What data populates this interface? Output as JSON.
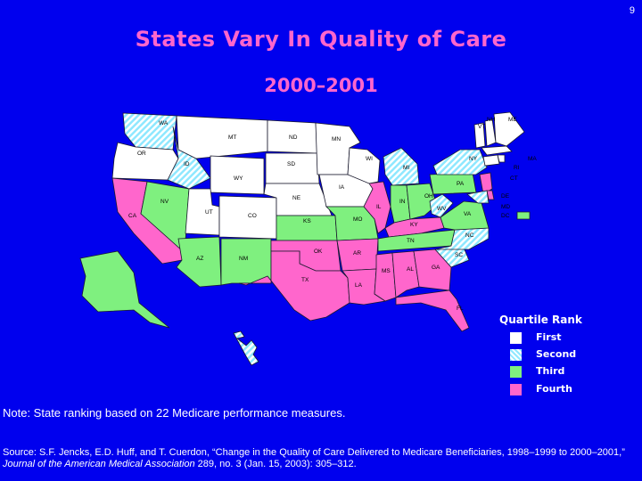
{
  "page_number": "9",
  "title": "States Vary In Quality of Care",
  "subtitle": "2000–2001",
  "colors": {
    "background": "#0000ee",
    "title": "#ff66cc",
    "first": "#ffffff",
    "second": "#8fe8ff",
    "third": "#7ff07f",
    "fourth": "#ff66cc",
    "border": "#1a1a2e"
  },
  "legend": {
    "title": "Quartile Rank",
    "items": [
      {
        "label": "First",
        "rank": "first"
      },
      {
        "label": "Second",
        "rank": "second"
      },
      {
        "label": "Third",
        "rank": "third"
      },
      {
        "label": "Fourth",
        "rank": "fourth"
      }
    ]
  },
  "states": [
    {
      "abbr": "WA",
      "label": "WA",
      "rank": "second"
    },
    {
      "abbr": "OR",
      "label": "OR",
      "rank": "first"
    },
    {
      "abbr": "CA",
      "label": "CA",
      "rank": "fourth"
    },
    {
      "abbr": "NV",
      "label": "NV",
      "rank": "third"
    },
    {
      "abbr": "ID",
      "label": "ID",
      "rank": "second"
    },
    {
      "abbr": "MT",
      "label": "MT",
      "rank": "first"
    },
    {
      "abbr": "WY",
      "label": "WY",
      "rank": "first"
    },
    {
      "abbr": "UT",
      "label": "UT",
      "rank": "first"
    },
    {
      "abbr": "AZ",
      "label": "AZ",
      "rank": "third"
    },
    {
      "abbr": "CO",
      "label": "CO",
      "rank": "first"
    },
    {
      "abbr": "NM",
      "label": "NM",
      "rank": "third"
    },
    {
      "abbr": "ND",
      "label": "ND",
      "rank": "first"
    },
    {
      "abbr": "SD",
      "label": "SD",
      "rank": "first"
    },
    {
      "abbr": "NE",
      "label": "NE",
      "rank": "first"
    },
    {
      "abbr": "KS",
      "label": "KS",
      "rank": "third"
    },
    {
      "abbr": "OK",
      "label": "OK",
      "rank": "fourth"
    },
    {
      "abbr": "TX",
      "label": "TX",
      "rank": "fourth"
    },
    {
      "abbr": "MN",
      "label": "MN",
      "rank": "first"
    },
    {
      "abbr": "IA",
      "label": "IA",
      "rank": "first"
    },
    {
      "abbr": "MO",
      "label": "MO",
      "rank": "third"
    },
    {
      "abbr": "AR",
      "label": "AR",
      "rank": "fourth"
    },
    {
      "abbr": "LA",
      "label": "LA",
      "rank": "fourth"
    },
    {
      "abbr": "WI",
      "label": "WI",
      "rank": "first"
    },
    {
      "abbr": "IL",
      "label": "IL",
      "rank": "fourth"
    },
    {
      "abbr": "MS",
      "label": "MS",
      "rank": "fourth"
    },
    {
      "abbr": "MI",
      "label": "MI",
      "rank": "second"
    },
    {
      "abbr": "IN",
      "label": "IN",
      "rank": "third"
    },
    {
      "abbr": "KY",
      "label": "KY",
      "rank": "fourth"
    },
    {
      "abbr": "TN",
      "label": "TN",
      "rank": "third"
    },
    {
      "abbr": "AL",
      "label": "AL",
      "rank": "fourth"
    },
    {
      "abbr": "OH",
      "label": "OH",
      "rank": "third"
    },
    {
      "abbr": "GA",
      "label": "GA",
      "rank": "fourth"
    },
    {
      "abbr": "FL",
      "label": "FL",
      "rank": "fourth"
    },
    {
      "abbr": "SC",
      "label": "SC",
      "rank": "second"
    },
    {
      "abbr": "NC",
      "label": "NC",
      "rank": "second"
    },
    {
      "abbr": "VA",
      "label": "VA",
      "rank": "third"
    },
    {
      "abbr": "WV",
      "label": "WV",
      "rank": "second"
    },
    {
      "abbr": "PA",
      "label": "PA",
      "rank": "third"
    },
    {
      "abbr": "NY",
      "label": "NY",
      "rank": "second"
    },
    {
      "abbr": "VT",
      "label": "VT",
      "rank": "first"
    },
    {
      "abbr": "NH",
      "label": "NH",
      "rank": "first"
    },
    {
      "abbr": "ME",
      "label": "ME",
      "rank": "first"
    },
    {
      "abbr": "MA",
      "label": "MA",
      "rank": "first"
    },
    {
      "abbr": "RI",
      "label": "RI",
      "rank": "first"
    },
    {
      "abbr": "CT",
      "label": "CT",
      "rank": "first"
    },
    {
      "abbr": "NJ",
      "label": "",
      "rank": "fourth"
    },
    {
      "abbr": "DE",
      "label": "DE",
      "rank": "fourth"
    },
    {
      "abbr": "MD",
      "label": "MD",
      "rank": "second"
    },
    {
      "abbr": "DC",
      "label": "DC",
      "rank": "third"
    },
    {
      "abbr": "AK",
      "label": "",
      "rank": "third"
    },
    {
      "abbr": "HI",
      "label": "",
      "rank": "second"
    }
  ],
  "note": "Note: State ranking based on 22 Medicare performance measures.",
  "source": {
    "prefix": "Source: S.F. Jencks, E.D. Huff, and T. Cuerdon, “Change in the Quality of Care Delivered to Medicare Beneficiaries, 1998–1999 to 2000–2001,” ",
    "journal": "Journal of the American Medical Association",
    "suffix": " 289, no. 3 (Jan. 15, 2003): 305–312."
  }
}
